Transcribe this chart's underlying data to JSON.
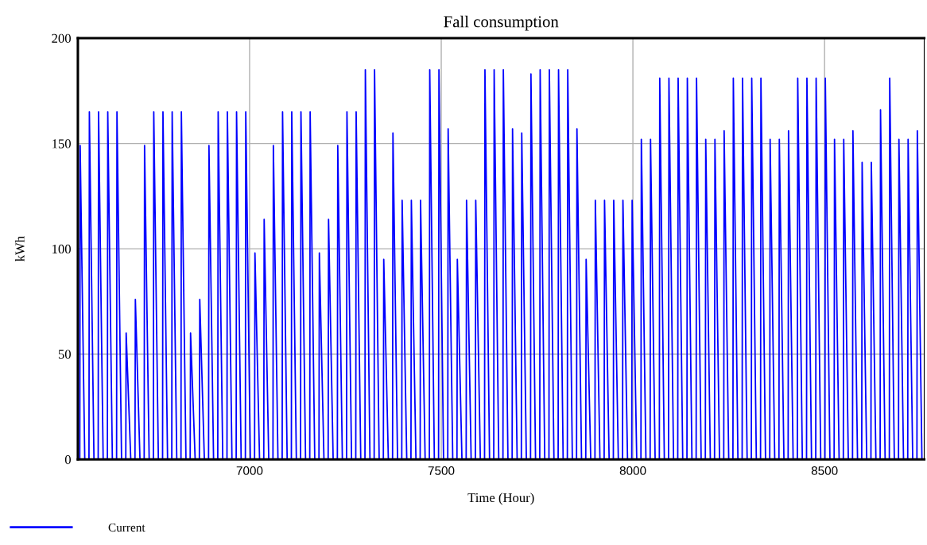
{
  "chart_data": {
    "type": "line",
    "title": "Fall consumption",
    "xlabel": "Time (Hour)",
    "ylabel": "kWh",
    "xlim": [
      6552,
      8760
    ],
    "xticks": [
      7000,
      7500,
      8000,
      8500
    ],
    "ylim": [
      0,
      200
    ],
    "yticks": [
      0,
      50,
      100,
      150,
      200
    ],
    "grid": true,
    "legend": "bottom left",
    "marker": "none",
    "line_style": "solid",
    "series": [
      {
        "name": "Current",
        "color": "#0000ff",
        "x": [
          6557,
          6558,
          6570,
          6581,
          6582,
          6594,
          6605,
          6606,
          6618,
          6629,
          6630,
          6642,
          6653,
          6654,
          6666,
          6677,
          6678,
          6690,
          6701,
          6702,
          6714,
          6725,
          6726,
          6738,
          6749,
          6750,
          6762,
          6773,
          6774,
          6786,
          6797,
          6798,
          6810,
          6821,
          6822,
          6834,
          6845,
          6846,
          6858,
          6869,
          6870,
          6882,
          6893,
          6894,
          6906,
          6917,
          6918,
          6930,
          6941,
          6942,
          6954,
          6965,
          6966,
          6978,
          6989,
          6990,
          7002,
          7013,
          7014,
          7026,
          7037,
          7038,
          7050,
          7061,
          7062,
          7074,
          7085,
          7086,
          7098,
          7109,
          7110,
          7122,
          7133,
          7134,
          7146,
          7157,
          7158,
          7170,
          7181,
          7182,
          7194,
          7205,
          7206,
          7218,
          7229,
          7230,
          7242,
          7253,
          7254,
          7266,
          7277,
          7278,
          7290,
          7301,
          7302,
          7314,
          7325,
          7326,
          7338,
          7349,
          7350,
          7362,
          7373,
          7374,
          7386,
          7397,
          7398,
          7410,
          7421,
          7422,
          7434,
          7445,
          7446,
          7458,
          7469,
          7470,
          7482,
          7493,
          7494,
          7506,
          7517,
          7518,
          7530,
          7541,
          7542,
          7554,
          7565,
          7566,
          7578,
          7589,
          7590,
          7602,
          7613,
          7614,
          7626,
          7637,
          7638,
          7650,
          7661,
          7662,
          7674,
          7685,
          7686,
          7698,
          7709,
          7710,
          7722,
          7733,
          7734,
          7746,
          7757,
          7758,
          7770,
          7781,
          7782,
          7794,
          7805,
          7806,
          7818,
          7829,
          7830,
          7842,
          7853,
          7854,
          7866,
          7877,
          7878,
          7890,
          7901,
          7902,
          7914,
          7925,
          7926,
          7938,
          7949,
          7950,
          7962,
          7973,
          7974,
          7986,
          7997,
          7998,
          8010,
          8021,
          8022,
          8034,
          8045,
          8046,
          8058,
          8069,
          8070,
          8082,
          8093,
          8094,
          8106,
          8117,
          8118,
          8130,
          8141,
          8142,
          8154,
          8165,
          8166,
          8178,
          8189,
          8190,
          8202,
          8213,
          8214,
          8226,
          8237,
          8238,
          8250,
          8261,
          8262,
          8274,
          8285,
          8286,
          8298,
          8309,
          8310,
          8322,
          8333,
          8334,
          8346,
          8357,
          8358,
          8370,
          8381,
          8382,
          8394,
          8405,
          8406,
          8418,
          8429,
          8430,
          8442,
          8453,
          8454,
          8466,
          8477,
          8478,
          8490,
          8501,
          8502,
          8514,
          8525,
          8526,
          8538,
          8549,
          8550,
          8562,
          8573,
          8574,
          8586,
          8597,
          8598,
          8610,
          8621,
          8622,
          8634,
          8645,
          8646,
          8658,
          8669,
          8670,
          8682,
          8693,
          8694,
          8706,
          8717,
          8718,
          8730,
          8741,
          8742,
          8754
        ],
        "values": [
          0,
          149,
          0,
          0,
          165,
          0,
          0,
          165,
          0,
          0,
          165,
          0,
          0,
          165,
          0,
          0,
          60,
          0,
          0,
          76,
          0,
          0,
          149,
          0,
          0,
          165,
          0,
          0,
          165,
          0,
          0,
          165,
          0,
          0,
          165,
          0,
          0,
          60,
          0,
          0,
          76,
          0,
          0,
          149,
          0,
          0,
          165,
          0,
          0,
          165,
          0,
          0,
          165,
          0,
          0,
          165,
          0,
          0,
          98,
          0,
          0,
          114,
          0,
          0,
          149,
          0,
          0,
          165,
          0,
          0,
          165,
          0,
          0,
          165,
          0,
          0,
          165,
          0,
          0,
          98,
          0,
          0,
          114,
          0,
          0,
          149,
          0,
          0,
          165,
          0,
          0,
          165,
          0,
          0,
          185,
          0,
          0,
          185,
          0,
          0,
          95,
          0,
          0,
          155,
          0,
          0,
          123,
          0,
          0,
          123,
          0,
          0,
          123,
          0,
          0,
          185,
          0,
          0,
          185,
          0,
          0,
          157,
          0,
          0,
          95,
          0,
          0,
          123,
          0,
          0,
          123,
          0,
          0,
          185,
          0,
          0,
          185,
          0,
          0,
          185,
          0,
          0,
          157,
          0,
          0,
          155,
          0,
          0,
          183,
          0,
          0,
          185,
          0,
          0,
          185,
          0,
          0,
          185,
          0,
          0,
          185,
          0,
          0,
          157,
          0,
          0,
          95,
          0,
          0,
          123,
          0,
          0,
          123,
          0,
          0,
          123,
          0,
          0,
          123,
          0,
          0,
          123,
          0,
          0,
          152,
          0,
          0,
          152,
          0,
          0,
          181,
          0,
          0,
          181,
          0,
          0,
          181,
          0,
          0,
          181,
          0,
          0,
          181,
          0,
          0,
          152,
          0,
          0,
          152,
          0,
          0,
          156,
          0,
          0,
          181,
          0,
          0,
          181,
          0,
          0,
          181,
          0,
          0,
          181,
          0,
          0,
          152,
          0,
          0,
          152,
          0,
          0,
          156,
          0,
          0,
          181,
          0,
          0,
          181,
          0,
          0,
          181,
          0,
          0,
          181,
          0,
          0,
          152,
          0,
          0,
          152,
          0,
          0,
          156,
          0,
          0,
          141,
          0,
          0,
          141,
          0,
          0,
          166,
          0,
          0,
          181,
          0,
          0,
          152,
          0,
          0,
          152,
          0,
          0,
          156,
          0
        ]
      }
    ]
  }
}
